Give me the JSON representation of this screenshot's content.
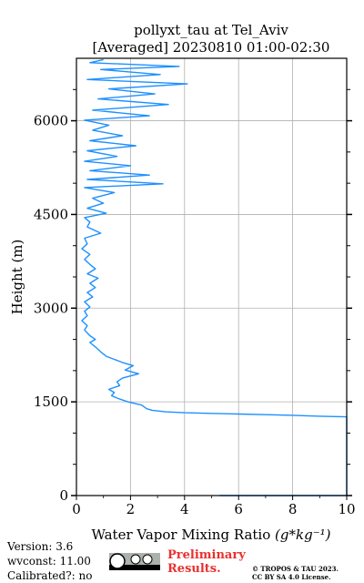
{
  "chart_data": {
    "type": "line",
    "title": "pollyxt_tau at Tel_Aviv",
    "subtitle": "[Averaged] 20230810 01:00-02:30",
    "xlabel": "Water Vapor Mixing Ratio",
    "xlabel_unit": "(g*kg⁻¹)",
    "ylabel": "Height (m)",
    "xlim": [
      0,
      10
    ],
    "ylim": [
      0,
      7000
    ],
    "xticks": [
      0,
      2,
      4,
      6,
      8,
      10
    ],
    "yticks": [
      0,
      1500,
      3000,
      4500,
      6000
    ],
    "grid": true,
    "color": "#1e90ff",
    "series": [
      {
        "points": [
          [
            5.3,
            0
          ],
          [
            10,
            0
          ],
          [
            10,
            1260
          ],
          [
            9.0,
            1270
          ],
          [
            8.0,
            1285
          ],
          [
            7.0,
            1295
          ],
          [
            6.0,
            1305
          ],
          [
            5.0,
            1315
          ],
          [
            4.0,
            1325
          ],
          [
            3.3,
            1340
          ],
          [
            2.8,
            1365
          ],
          [
            2.6,
            1390
          ],
          [
            2.5,
            1420
          ],
          [
            2.4,
            1450
          ],
          [
            2.2,
            1470
          ],
          [
            1.9,
            1500
          ],
          [
            1.7,
            1530
          ],
          [
            1.5,
            1560
          ],
          [
            1.3,
            1600
          ],
          [
            1.4,
            1650
          ],
          [
            1.2,
            1700
          ],
          [
            1.6,
            1760
          ],
          [
            1.5,
            1820
          ],
          [
            1.7,
            1880
          ],
          [
            2.3,
            1950
          ],
          [
            1.8,
            2010
          ],
          [
            2.1,
            2080
          ],
          [
            1.7,
            2130
          ],
          [
            1.4,
            2180
          ],
          [
            1.1,
            2230
          ],
          [
            0.9,
            2300
          ],
          [
            0.7,
            2380
          ],
          [
            0.5,
            2450
          ],
          [
            0.7,
            2500
          ],
          [
            0.5,
            2560
          ],
          [
            0.3,
            2650
          ],
          [
            0.4,
            2720
          ],
          [
            0.2,
            2800
          ],
          [
            0.4,
            2880
          ],
          [
            0.3,
            2950
          ],
          [
            0.5,
            3020
          ],
          [
            0.3,
            3100
          ],
          [
            0.6,
            3180
          ],
          [
            0.4,
            3250
          ],
          [
            0.7,
            3330
          ],
          [
            0.5,
            3400
          ],
          [
            0.8,
            3480
          ],
          [
            0.4,
            3550
          ],
          [
            0.7,
            3630
          ],
          [
            0.5,
            3700
          ],
          [
            0.3,
            3780
          ],
          [
            0.5,
            3860
          ],
          [
            0.2,
            3950
          ],
          [
            0.4,
            4030
          ],
          [
            0.3,
            4120
          ],
          [
            0.9,
            4200
          ],
          [
            0.4,
            4300
          ],
          [
            0.5,
            4380
          ],
          [
            0.3,
            4450
          ],
          [
            1.1,
            4520
          ],
          [
            0.4,
            4600
          ],
          [
            1.0,
            4680
          ],
          [
            0.6,
            4760
          ],
          [
            1.4,
            4850
          ],
          [
            0.3,
            4930
          ],
          [
            3.2,
            4990
          ],
          [
            0.4,
            5060
          ],
          [
            2.7,
            5130
          ],
          [
            0.5,
            5200
          ],
          [
            2.0,
            5280
          ],
          [
            0.3,
            5350
          ],
          [
            1.5,
            5430
          ],
          [
            0.4,
            5520
          ],
          [
            2.2,
            5600
          ],
          [
            0.5,
            5680
          ],
          [
            1.7,
            5760
          ],
          [
            0.6,
            5850
          ],
          [
            1.2,
            5930
          ],
          [
            0.3,
            6010
          ],
          [
            2.7,
            6080
          ],
          [
            0.6,
            6170
          ],
          [
            3.4,
            6260
          ],
          [
            0.8,
            6350
          ],
          [
            2.9,
            6430
          ],
          [
            1.2,
            6510
          ],
          [
            4.1,
            6590
          ],
          [
            0.4,
            6660
          ],
          [
            3.1,
            6740
          ],
          [
            0.9,
            6820
          ],
          [
            3.8,
            6870
          ],
          [
            0.5,
            6930
          ],
          [
            1.0,
            6980
          ]
        ]
      }
    ]
  },
  "footer": {
    "version": "Version: 3.6",
    "wvconst": "wvconst:  11.00",
    "calibrated": "Calibrated?: no",
    "preliminary_line1": "Preliminary",
    "preliminary_line2": "Results.",
    "copyright_line1": "© TROPOS & TAU 2023.",
    "copyright_line2": "CC BY SA 4.0 License."
  }
}
